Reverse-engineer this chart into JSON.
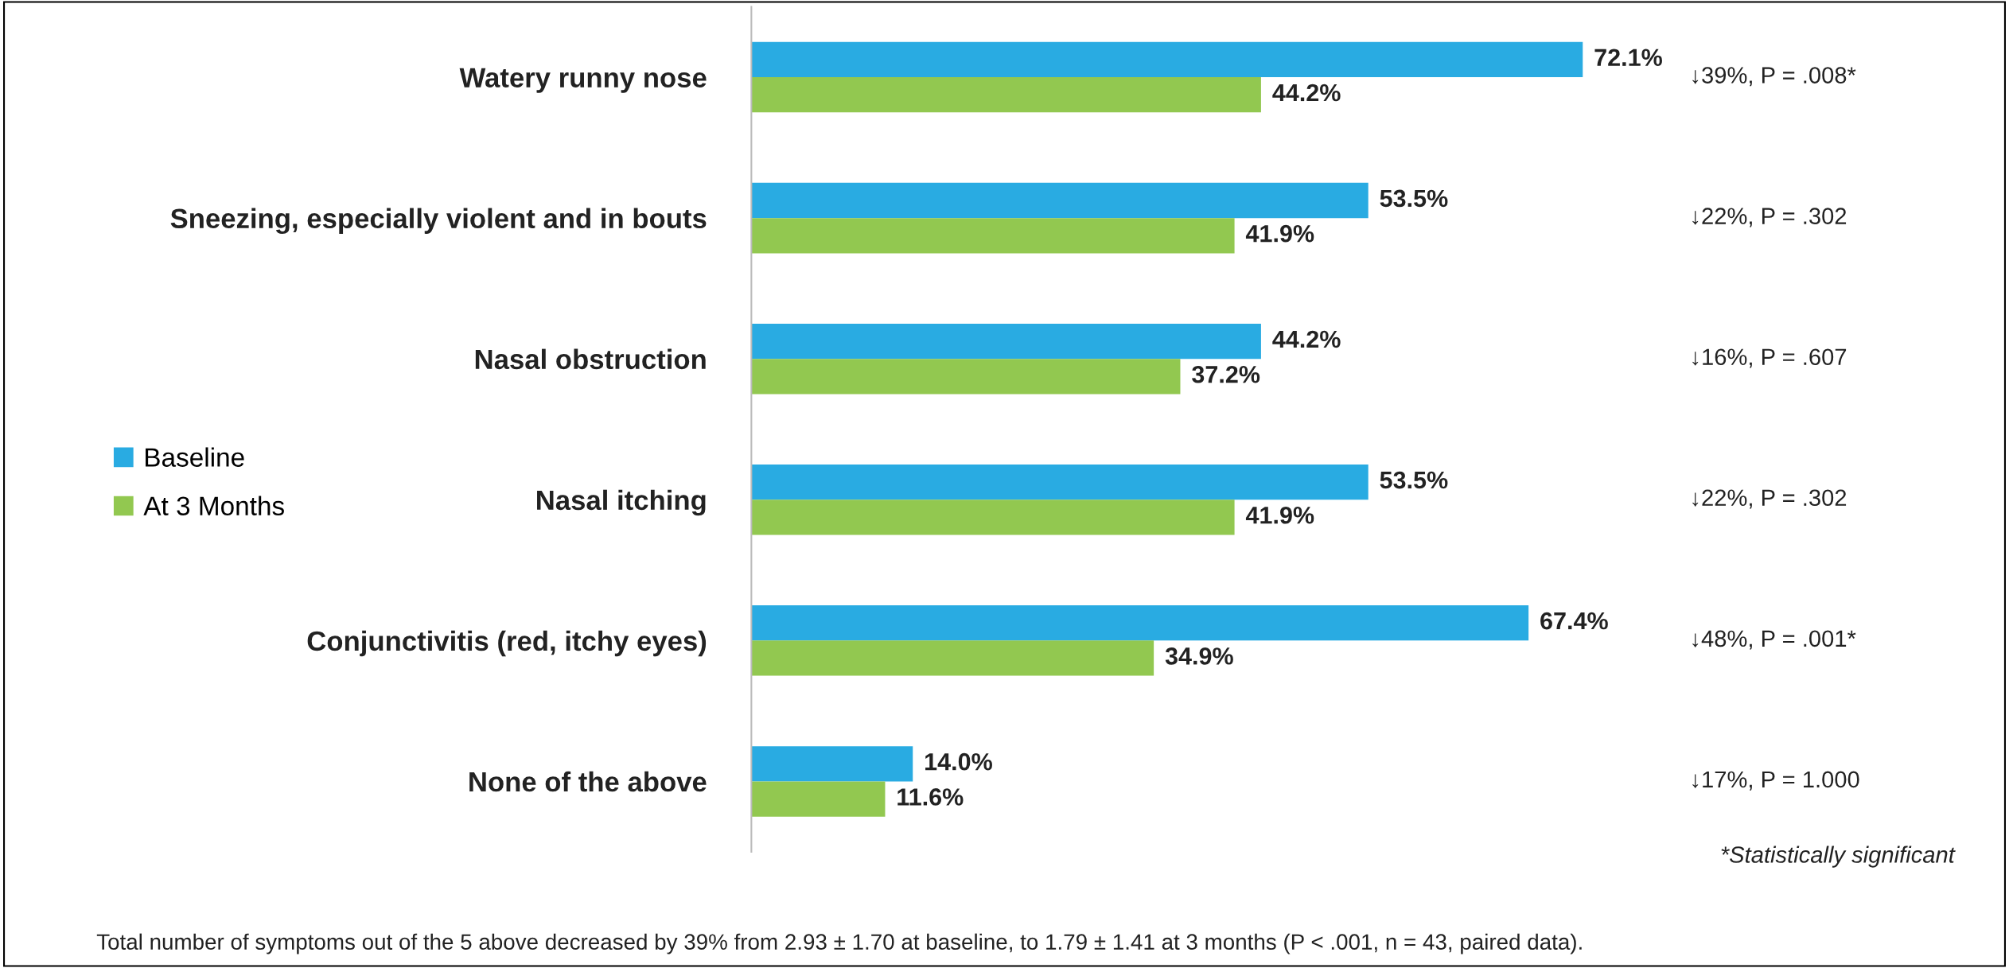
{
  "chart_data": {
    "type": "bar",
    "orientation": "horizontal",
    "categories": [
      "Watery runny nose",
      "Sneezing, especially violent and in bouts",
      "Nasal obstruction",
      "Nasal itching",
      "Conjunctivitis (red, itchy eyes)",
      "None of the above"
    ],
    "series": [
      {
        "name": "Baseline",
        "color": "#29abe2",
        "values": [
          72.1,
          53.5,
          44.2,
          53.5,
          67.4,
          14.0
        ],
        "value_labels": [
          "72.1%",
          "53.5%",
          "44.2%",
          "53.5%",
          "67.4%",
          "14.0%"
        ]
      },
      {
        "name": "At 3 Months",
        "color": "#92c850",
        "values": [
          44.2,
          41.9,
          37.2,
          41.9,
          34.9,
          11.6
        ],
        "value_labels": [
          "44.2%",
          "41.9%",
          "37.2%",
          "41.9%",
          "34.9%",
          "11.6%"
        ]
      }
    ],
    "legend": "left",
    "annotations": [
      "↓39%, P = .008*",
      "↓22%, P = .302",
      "↓16%, P = .607",
      "↓22%, P = .302",
      "↓48%, P = .001*",
      "↓17%, P = 1.000",
      "*Statistically significant",
      "Total number of symptoms out of the 5 above decreased by 39% from 2.93 ± 1.70 at baseline, to 1.79 ± 1.41 at 3 months (P < .001, n = 43, paired data)."
    ]
  }
}
